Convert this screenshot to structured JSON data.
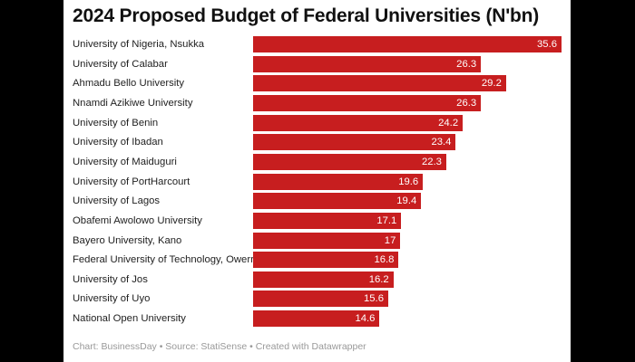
{
  "chart_data": {
    "type": "bar",
    "orientation": "horizontal",
    "title": "2024 Proposed Budget of Federal Universities (N'bn)",
    "categories": [
      "University of Nigeria, Nsukka",
      "University of Calabar",
      "Ahmadu Bello University",
      "Nnamdi Azikiwe University",
      "University of Benin",
      "University of Ibadan",
      "University of Maiduguri",
      "University of PortHarcourt",
      "University of Lagos",
      "Obafemi Awolowo University",
      "Bayero University, Kano",
      "Federal University of Technology, Owerri",
      "University of Jos",
      "University of Uyo",
      "National Open University"
    ],
    "values": [
      35.6,
      26.3,
      29.2,
      26.3,
      24.2,
      23.4,
      22.3,
      19.6,
      19.4,
      17.1,
      17,
      16.8,
      16.2,
      15.6,
      14.6
    ],
    "value_labels": [
      "35.6",
      "26.3",
      "29.2",
      "26.3",
      "24.2",
      "23.4",
      "22.3",
      "19.6",
      "19.4",
      "17.1",
      "17",
      "16.8",
      "16.2",
      "15.6",
      "14.6"
    ],
    "xlim": [
      0,
      35.6
    ],
    "bar_color": "#c71e1f",
    "grid": false,
    "legend": "none",
    "footer": "Chart: BusinessDay • Source: StatiSense • Created with Datawrapper"
  }
}
